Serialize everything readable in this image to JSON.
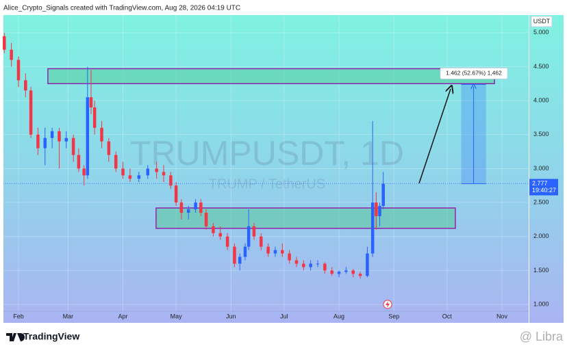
{
  "header": "Alice_Crypto_Signals created with TradingView.com, Aug 28, 2026 04:19 UTC",
  "chart_data": {
    "type": "candlestick",
    "watermark": "TRUMPUSDT, 1D",
    "watermark_subtitle": "TRUMP / TetherUS",
    "currency": "USDT",
    "up_color": "#2962ff",
    "down_color": "#f23645",
    "grid": true,
    "x": [
      -8,
      -4,
      0,
      4,
      7,
      11,
      15,
      19,
      23,
      27,
      31,
      34,
      37,
      39,
      41,
      43,
      47,
      51,
      55,
      59,
      63,
      68,
      73,
      78,
      82,
      86,
      89,
      92,
      96,
      100,
      103,
      106,
      110,
      114,
      118,
      122,
      125,
      128,
      130,
      133,
      137,
      141,
      145,
      149,
      153,
      157,
      161,
      165,
      169,
      173,
      177,
      181,
      185,
      189,
      193,
      197,
      200,
      202,
      204,
      206
    ],
    "open": [
      4.95,
      4.75,
      4.6,
      4.3,
      4.15,
      3.5,
      3.3,
      3.45,
      3.55,
      3.4,
      3.45,
      3.2,
      3.0,
      2.9,
      4.05,
      3.9,
      3.6,
      3.4,
      3.2,
      3.0,
      2.9,
      2.85,
      2.9,
      3.0,
      2.95,
      2.9,
      2.75,
      2.5,
      2.35,
      2.4,
      2.5,
      2.35,
      2.15,
      2.05,
      2.0,
      1.85,
      1.6,
      1.7,
      1.85,
      2.15,
      2.0,
      1.85,
      1.75,
      1.8,
      1.75,
      1.65,
      1.6,
      1.55,
      1.6,
      1.6,
      1.5,
      1.45,
      1.48,
      1.5,
      1.45,
      1.42,
      1.75,
      2.5,
      2.3,
      2.45
    ],
    "high": [
      5.0,
      4.85,
      4.65,
      4.4,
      4.2,
      3.6,
      3.6,
      3.6,
      3.6,
      3.55,
      3.5,
      3.3,
      3.05,
      4.5,
      4.45,
      4.0,
      3.7,
      3.45,
      3.25,
      3.1,
      3.0,
      2.95,
      3.05,
      3.1,
      3.05,
      2.95,
      2.8,
      2.55,
      2.45,
      2.55,
      2.55,
      2.4,
      2.2,
      2.15,
      2.05,
      1.9,
      1.75,
      1.9,
      2.4,
      2.2,
      2.05,
      1.9,
      1.85,
      1.9,
      1.8,
      1.7,
      1.65,
      1.65,
      1.65,
      1.62,
      1.55,
      1.5,
      1.55,
      1.52,
      1.48,
      1.85,
      3.7,
      2.65,
      2.5,
      2.95
    ],
    "low": [
      4.7,
      4.5,
      4.2,
      4.05,
      3.45,
      3.2,
      3.05,
      3.3,
      3.0,
      3.3,
      3.1,
      2.95,
      2.75,
      2.85,
      3.8,
      3.5,
      3.3,
      3.1,
      2.95,
      2.85,
      2.8,
      2.8,
      2.85,
      2.85,
      2.8,
      2.7,
      2.45,
      2.25,
      2.25,
      2.35,
      2.3,
      2.1,
      2.0,
      1.95,
      1.8,
      1.55,
      1.5,
      1.65,
      1.8,
      1.95,
      1.8,
      1.7,
      1.7,
      1.7,
      1.6,
      1.55,
      1.5,
      1.5,
      1.55,
      1.45,
      1.42,
      1.4,
      1.45,
      1.4,
      1.38,
      1.4,
      1.7,
      2.1,
      2.15,
      2.4
    ],
    "close": [
      4.75,
      4.6,
      4.3,
      4.15,
      3.5,
      3.3,
      3.45,
      3.55,
      3.4,
      3.45,
      3.2,
      3.0,
      2.9,
      4.05,
      3.9,
      3.6,
      3.4,
      3.2,
      3.0,
      2.9,
      2.85,
      2.9,
      3.0,
      2.95,
      2.9,
      2.75,
      2.5,
      2.35,
      2.4,
      2.5,
      2.35,
      2.15,
      2.05,
      2.0,
      1.85,
      1.6,
      1.7,
      1.85,
      2.15,
      2.0,
      1.85,
      1.75,
      1.8,
      1.75,
      1.65,
      1.6,
      1.55,
      1.6,
      1.6,
      1.5,
      1.45,
      1.48,
      1.5,
      1.45,
      1.42,
      1.75,
      2.5,
      2.3,
      2.45,
      2.777
    ],
    "xlim": [
      -8.5,
      288.1
    ],
    "xticks": [
      {
        "value": 0,
        "label": "Feb"
      },
      {
        "value": 28,
        "label": "Mar"
      },
      {
        "value": 59,
        "label": "Apr"
      },
      {
        "value": 89,
        "label": "May"
      },
      {
        "value": 120,
        "label": "Jun"
      },
      {
        "value": 150,
        "label": "Jul"
      },
      {
        "value": 181,
        "label": "Aug"
      },
      {
        "value": 212,
        "label": "Sep"
      },
      {
        "value": 242,
        "label": "Oct"
      },
      {
        "value": 273,
        "label": "Nov"
      }
    ],
    "ylim": [
      0.9,
      5.26
    ],
    "yticks": [
      {
        "value": 1,
        "label": "1.000"
      },
      {
        "value": 1.5,
        "label": "1.500"
      },
      {
        "value": 2,
        "label": "2.000"
      },
      {
        "value": 2.5,
        "label": "2.500"
      },
      {
        "value": 3,
        "label": "3.000"
      },
      {
        "value": 3.5,
        "label": "3.500"
      },
      {
        "value": 4,
        "label": "4.000"
      },
      {
        "value": 4.5,
        "label": "4.500"
      },
      {
        "value": 5,
        "label": "5.000"
      }
    ],
    "countdown": "19:40:27",
    "zones": [
      {
        "x": [
          16.6,
          268.8
        ],
        "y": [
          4.25,
          4.47
        ]
      },
      {
        "x": [
          77.7,
          246.7
        ],
        "y": [
          2.12,
          2.42
        ]
      }
    ],
    "measure": {
      "x": [
        250,
        264
      ],
      "from": 2.777,
      "to": 4.239,
      "label": "1.462 (52.67%) 1,462"
    }
  },
  "footer": {
    "logo": "TradingView",
    "watermark": "@ Libra"
  }
}
